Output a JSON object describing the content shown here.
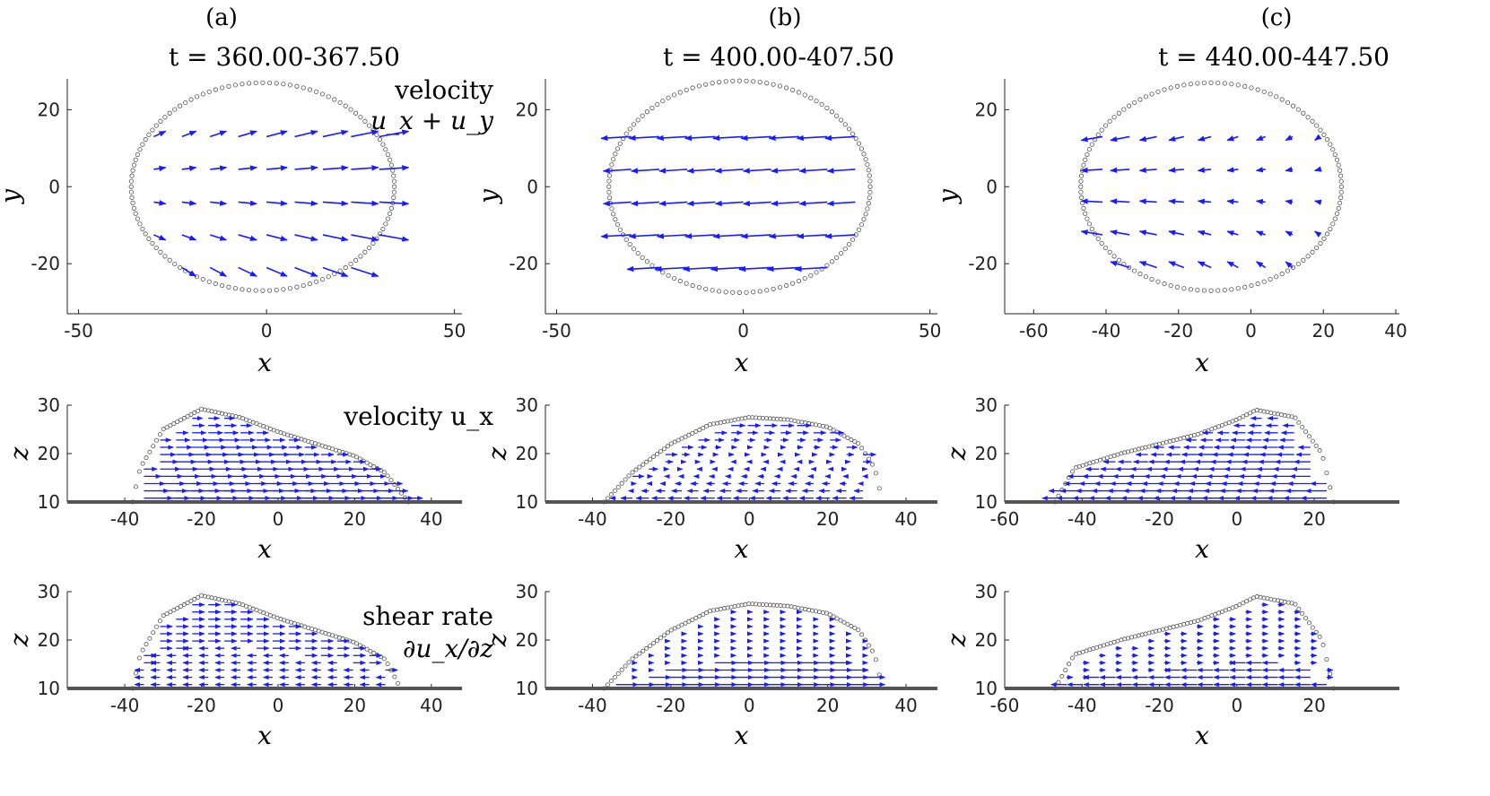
{
  "columns": [
    {
      "label": "(a)",
      "time": "t = 360.00-367.50"
    },
    {
      "label": "(b)",
      "time": "t = 400.00-407.50"
    },
    {
      "label": "(c)",
      "time": "t = 440.00-447.50"
    }
  ],
  "row_labels": {
    "row1_line1": "velocity",
    "row1_line2": "u_x + u_y",
    "row2": "velocity u_x",
    "row3_line1": "shear rate",
    "row3_line2": "∂u_x/∂z"
  },
  "colors": {
    "arrow": "#1a1aff",
    "droplet": "#555555",
    "wall": "#555555",
    "axis": "#222222"
  },
  "chart_data": [
    {
      "type": "quiver",
      "id": "a1",
      "view": "top",
      "xlim": [
        -53,
        52
      ],
      "ylim": [
        -33,
        28
      ],
      "xticks": [
        -50,
        0,
        50
      ],
      "yticks": [
        -20,
        0,
        20
      ],
      "xlabel": "x",
      "ylabel": "y",
      "outline": {
        "cx": -1,
        "cy": 0,
        "rx": 35,
        "ry": 27
      },
      "field": "diverge-right"
    },
    {
      "type": "quiver",
      "id": "b1",
      "view": "top",
      "xlim": [
        -53,
        52
      ],
      "ylim": [
        -33,
        28
      ],
      "xticks": [
        -50,
        0,
        50
      ],
      "yticks": [
        -20,
        0,
        20
      ],
      "xlabel": "x",
      "ylabel": "y",
      "outline": {
        "cx": -1,
        "cy": 0,
        "rx": 35,
        "ry": 27.5
      },
      "field": "uniform-left"
    },
    {
      "type": "quiver",
      "id": "c1",
      "view": "top",
      "xlim": [
        -68,
        41
      ],
      "ylim": [
        -33,
        28
      ],
      "xticks": [
        -60,
        -40,
        -20,
        0,
        20,
        40
      ],
      "yticks": [
        -20,
        0,
        20
      ],
      "xlabel": "x",
      "ylabel": "y",
      "outline": {
        "cx": -11,
        "cy": 0,
        "rx": 36,
        "ry": 27
      },
      "field": "converge-left"
    },
    {
      "type": "quiver",
      "id": "a2",
      "view": "side",
      "xlim": [
        -55,
        48
      ],
      "ylim": [
        10,
        30
      ],
      "xticks": [
        -40,
        -20,
        0,
        20,
        40
      ],
      "yticks": [
        10,
        20,
        30
      ],
      "xlabel": "x",
      "ylabel": "z",
      "profile": [
        [
          -38,
          10
        ],
        [
          -36,
          17
        ],
        [
          -30,
          25
        ],
        [
          -20,
          29.2
        ],
        [
          -10,
          27.5
        ],
        [
          0,
          24.5
        ],
        [
          10,
          22
        ],
        [
          20,
          19.5
        ],
        [
          28,
          16
        ],
        [
          34,
          10
        ]
      ],
      "field": "ux-right"
    },
    {
      "type": "quiver",
      "id": "b2",
      "view": "side",
      "xlim": [
        -52,
        48
      ],
      "ylim": [
        10,
        30
      ],
      "xticks": [
        -40,
        -20,
        0,
        20,
        40
      ],
      "yticks": [
        10,
        20,
        30
      ],
      "xlabel": "x",
      "ylabel": "z",
      "profile": [
        [
          -37,
          10
        ],
        [
          -30,
          16
        ],
        [
          -20,
          22
        ],
        [
          -10,
          26
        ],
        [
          0,
          27.5
        ],
        [
          10,
          27
        ],
        [
          20,
          25.5
        ],
        [
          28,
          22
        ],
        [
          32,
          17
        ],
        [
          34,
          10
        ]
      ],
      "field": "ux-mixed"
    },
    {
      "type": "quiver",
      "id": "c2",
      "view": "side",
      "xlim": [
        -60,
        42
      ],
      "ylim": [
        10,
        30
      ],
      "xticks": [
        -60,
        -40,
        -20,
        0,
        20
      ],
      "yticks": [
        10,
        20,
        30
      ],
      "xlabel": "x",
      "ylabel": "z",
      "profile": [
        [
          -47,
          10
        ],
        [
          -42,
          17
        ],
        [
          -30,
          20
        ],
        [
          -20,
          22
        ],
        [
          -10,
          24
        ],
        [
          0,
          27
        ],
        [
          5,
          29
        ],
        [
          15,
          27.5
        ],
        [
          22,
          20
        ],
        [
          25,
          10
        ]
      ],
      "field": "ux-left"
    },
    {
      "type": "quiver",
      "id": "a3",
      "view": "side",
      "xlim": [
        -55,
        48
      ],
      "ylim": [
        10,
        30
      ],
      "xticks": [
        -40,
        -20,
        0,
        20,
        40
      ],
      "yticks": [
        10,
        20,
        30
      ],
      "xlabel": "x",
      "ylabel": "z",
      "profile": [
        [
          -38,
          10
        ],
        [
          -36,
          17
        ],
        [
          -30,
          25
        ],
        [
          -20,
          29.2
        ],
        [
          -10,
          27.5
        ],
        [
          0,
          24.5
        ],
        [
          10,
          22
        ],
        [
          20,
          19.5
        ],
        [
          28,
          16
        ],
        [
          32,
          10
        ]
      ],
      "field": "shear-mixed"
    },
    {
      "type": "quiver",
      "id": "b3",
      "view": "side",
      "xlim": [
        -52,
        48
      ],
      "ylim": [
        10,
        30
      ],
      "xticks": [
        -40,
        -20,
        0,
        20,
        40
      ],
      "yticks": [
        10,
        20,
        30
      ],
      "xlabel": "x",
      "ylabel": "z",
      "profile": [
        [
          -37,
          10
        ],
        [
          -30,
          16
        ],
        [
          -20,
          22
        ],
        [
          -10,
          26
        ],
        [
          0,
          27.5
        ],
        [
          10,
          27
        ],
        [
          20,
          25.5
        ],
        [
          28,
          22
        ],
        [
          32,
          17
        ],
        [
          34,
          10
        ]
      ],
      "field": "shear-bottom"
    },
    {
      "type": "quiver",
      "id": "c3",
      "view": "side",
      "xlim": [
        -60,
        42
      ],
      "ylim": [
        10,
        30
      ],
      "xticks": [
        -60,
        -40,
        -20,
        0,
        20
      ],
      "yticks": [
        10,
        20,
        30
      ],
      "xlabel": "x",
      "ylabel": "z",
      "profile": [
        [
          -47,
          10
        ],
        [
          -42,
          17
        ],
        [
          -30,
          20
        ],
        [
          -20,
          22
        ],
        [
          -10,
          24
        ],
        [
          0,
          27
        ],
        [
          5,
          29
        ],
        [
          15,
          27.5
        ],
        [
          22,
          20
        ],
        [
          25,
          10
        ]
      ],
      "field": "shear-weak"
    }
  ]
}
